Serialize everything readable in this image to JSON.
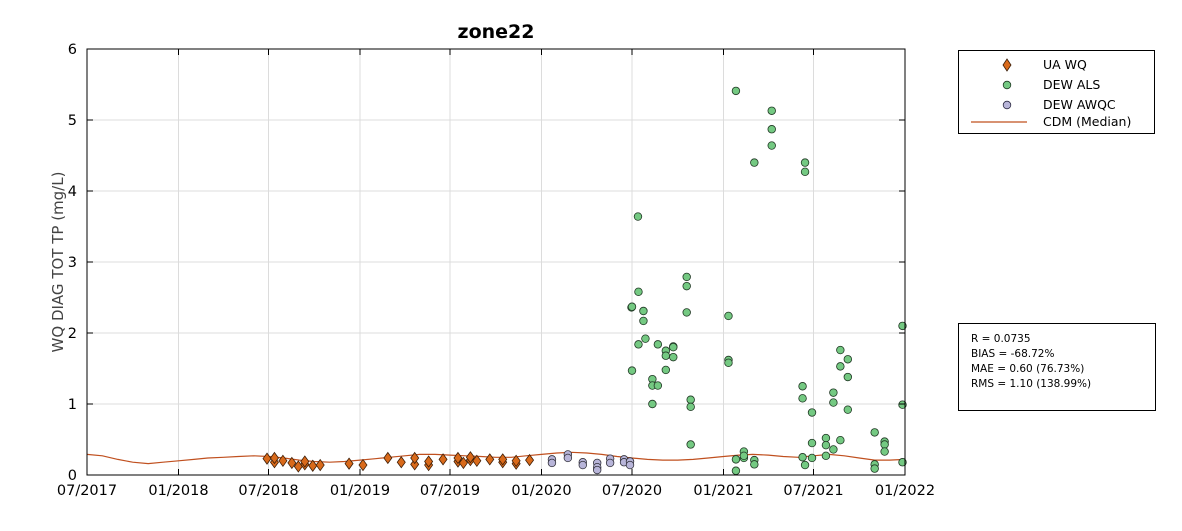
{
  "chart_data": {
    "type": "scatter",
    "title": "zone22",
    "xlabel": "",
    "ylabel": "WQ DIAG TOT TP (mg/L)",
    "xlim": [
      "2017-07-01",
      "2022-01-01"
    ],
    "ylim": [
      0,
      6
    ],
    "xticks": [
      "2017-07-01",
      "2018-01-01",
      "2018-07-01",
      "2019-01-01",
      "2019-07-01",
      "2020-01-01",
      "2020-07-01",
      "2021-01-01",
      "2021-07-01",
      "2022-01-01"
    ],
    "xtick_labels": [
      "07/2017",
      "01/2018",
      "07/2018",
      "01/2019",
      "07/2019",
      "01/2020",
      "07/2020",
      "01/2021",
      "07/2021",
      "01/2022"
    ],
    "yticks": [
      0,
      1,
      2,
      3,
      4,
      5,
      6
    ],
    "ytick_labels": [
      "0",
      "1",
      "2",
      "3",
      "4",
      "5",
      "6"
    ],
    "grid": true,
    "legend_position": "outside-top-right",
    "series": [
      {
        "name": "UA WQ",
        "marker": "diamond",
        "color": "#d96a1b",
        "points": [
          [
            "2018-06-28",
            0.23
          ],
          [
            "2018-07-13",
            0.18
          ],
          [
            "2018-07-13",
            0.24
          ],
          [
            "2018-07-30",
            0.2
          ],
          [
            "2018-08-17",
            0.17
          ],
          [
            "2018-08-30",
            0.12
          ],
          [
            "2018-09-12",
            0.15
          ],
          [
            "2018-09-12",
            0.19
          ],
          [
            "2018-09-28",
            0.13
          ],
          [
            "2018-10-13",
            0.14
          ],
          [
            "2018-12-10",
            0.16
          ],
          [
            "2019-01-07",
            0.14
          ],
          [
            "2019-02-26",
            0.24
          ],
          [
            "2019-03-25",
            0.18
          ],
          [
            "2019-04-21",
            0.15
          ],
          [
            "2019-04-21",
            0.24
          ],
          [
            "2019-05-19",
            0.14
          ],
          [
            "2019-05-19",
            0.19
          ],
          [
            "2019-06-17",
            0.22
          ],
          [
            "2019-07-17",
            0.19
          ],
          [
            "2019-07-17",
            0.24
          ],
          [
            "2019-07-28",
            0.17
          ],
          [
            "2019-08-11",
            0.21
          ],
          [
            "2019-08-11",
            0.25
          ],
          [
            "2019-08-24",
            0.2
          ],
          [
            "2019-09-19",
            0.22
          ],
          [
            "2019-10-15",
            0.18
          ],
          [
            "2019-10-15",
            0.22
          ],
          [
            "2019-11-11",
            0.16
          ],
          [
            "2019-11-11",
            0.2
          ],
          [
            "2019-12-08",
            0.21
          ]
        ]
      },
      {
        "name": "DEW ALS",
        "marker": "circle",
        "color": "#74c982",
        "points": [
          [
            "2020-06-30",
            2.36
          ],
          [
            "2020-07-01",
            2.37
          ],
          [
            "2020-07-01",
            1.47
          ],
          [
            "2020-07-13",
            3.64
          ],
          [
            "2020-07-14",
            2.58
          ],
          [
            "2020-07-14",
            1.84
          ],
          [
            "2020-07-24",
            2.31
          ],
          [
            "2020-07-24",
            2.17
          ],
          [
            "2020-07-28",
            1.92
          ],
          [
            "2020-08-11",
            1.35
          ],
          [
            "2020-08-11",
            1.26
          ],
          [
            "2020-08-11",
            1.0
          ],
          [
            "2020-08-22",
            1.26
          ],
          [
            "2020-08-22",
            1.84
          ],
          [
            "2020-09-07",
            1.75
          ],
          [
            "2020-09-07",
            1.68
          ],
          [
            "2020-09-07",
            1.48
          ],
          [
            "2020-09-22",
            1.81
          ],
          [
            "2020-09-22",
            1.8
          ],
          [
            "2020-09-22",
            1.66
          ],
          [
            "2020-10-19",
            2.79
          ],
          [
            "2020-10-19",
            2.66
          ],
          [
            "2020-10-19",
            2.29
          ],
          [
            "2020-10-27",
            1.06
          ],
          [
            "2020-10-27",
            0.96
          ],
          [
            "2020-10-27",
            0.43
          ],
          [
            "2021-01-11",
            2.24
          ],
          [
            "2021-01-11",
            1.62
          ],
          [
            "2021-01-11",
            1.58
          ],
          [
            "2021-01-26",
            5.41
          ],
          [
            "2021-01-26",
            0.22
          ],
          [
            "2021-01-26",
            0.06
          ],
          [
            "2021-02-11",
            0.33
          ],
          [
            "2021-02-11",
            0.24
          ],
          [
            "2021-02-11",
            0.27
          ],
          [
            "2021-03-04",
            4.4
          ],
          [
            "2021-03-04",
            0.21
          ],
          [
            "2021-03-04",
            0.15
          ],
          [
            "2021-04-08",
            5.13
          ],
          [
            "2021-04-08",
            4.87
          ],
          [
            "2021-04-08",
            4.64
          ],
          [
            "2021-06-09",
            1.25
          ],
          [
            "2021-06-09",
            1.08
          ],
          [
            "2021-06-09",
            0.25
          ],
          [
            "2021-06-14",
            4.4
          ],
          [
            "2021-06-14",
            4.27
          ],
          [
            "2021-06-14",
            0.14
          ],
          [
            "2021-06-28",
            0.88
          ],
          [
            "2021-06-28",
            0.45
          ],
          [
            "2021-06-28",
            0.24
          ],
          [
            "2021-07-26",
            0.52
          ],
          [
            "2021-07-26",
            0.42
          ],
          [
            "2021-07-26",
            0.27
          ],
          [
            "2021-08-10",
            1.16
          ],
          [
            "2021-08-10",
            1.02
          ],
          [
            "2021-08-10",
            0.36
          ],
          [
            "2021-08-24",
            1.76
          ],
          [
            "2021-08-24",
            1.53
          ],
          [
            "2021-08-24",
            0.49
          ],
          [
            "2021-09-08",
            1.63
          ],
          [
            "2021-09-08",
            1.38
          ],
          [
            "2021-09-08",
            0.92
          ],
          [
            "2021-11-01",
            0.6
          ],
          [
            "2021-11-01",
            0.15
          ],
          [
            "2021-11-01",
            0.09
          ],
          [
            "2021-11-21",
            0.47
          ],
          [
            "2021-11-21",
            0.43
          ],
          [
            "2021-11-21",
            0.33
          ],
          [
            "2021-12-27",
            2.1
          ],
          [
            "2021-12-27",
            0.99
          ],
          [
            "2021-12-27",
            0.18
          ]
        ]
      },
      {
        "name": "DEW AWQC",
        "marker": "circle",
        "color": "#b8b5d9",
        "points": [
          [
            "2020-01-22",
            0.22
          ],
          [
            "2020-01-22",
            0.17
          ],
          [
            "2020-02-23",
            0.29
          ],
          [
            "2020-02-23",
            0.24
          ],
          [
            "2020-03-24",
            0.18
          ],
          [
            "2020-03-24",
            0.14
          ],
          [
            "2020-04-22",
            0.17
          ],
          [
            "2020-04-22",
            0.11
          ],
          [
            "2020-04-22",
            0.07
          ],
          [
            "2020-05-18",
            0.23
          ],
          [
            "2020-05-18",
            0.17
          ],
          [
            "2020-06-15",
            0.22
          ],
          [
            "2020-06-15",
            0.18
          ],
          [
            "2020-06-27",
            0.19
          ],
          [
            "2020-06-27",
            0.14
          ]
        ]
      },
      {
        "name": "CDM (Median)",
        "type": "line",
        "color": "#c0501f",
        "points": [
          [
            "2017-07-01",
            0.29
          ],
          [
            "2017-08-01",
            0.27
          ],
          [
            "2017-09-01",
            0.22
          ],
          [
            "2017-10-01",
            0.18
          ],
          [
            "2017-11-01",
            0.16
          ],
          [
            "2017-12-01",
            0.18
          ],
          [
            "2018-01-01",
            0.2
          ],
          [
            "2018-02-01",
            0.22
          ],
          [
            "2018-03-01",
            0.24
          ],
          [
            "2018-04-01",
            0.25
          ],
          [
            "2018-05-01",
            0.26
          ],
          [
            "2018-06-01",
            0.27
          ],
          [
            "2018-07-01",
            0.26
          ],
          [
            "2018-08-01",
            0.24
          ],
          [
            "2018-09-01",
            0.21
          ],
          [
            "2018-10-01",
            0.19
          ],
          [
            "2018-11-01",
            0.18
          ],
          [
            "2018-12-01",
            0.19
          ],
          [
            "2019-01-01",
            0.21
          ],
          [
            "2019-02-01",
            0.23
          ],
          [
            "2019-03-01",
            0.25
          ],
          [
            "2019-04-01",
            0.27
          ],
          [
            "2019-05-01",
            0.29
          ],
          [
            "2019-06-01",
            0.29
          ],
          [
            "2019-07-01",
            0.28
          ],
          [
            "2019-08-01",
            0.27
          ],
          [
            "2019-09-01",
            0.26
          ],
          [
            "2019-10-01",
            0.25
          ],
          [
            "2019-11-01",
            0.25
          ],
          [
            "2019-12-01",
            0.27
          ],
          [
            "2020-01-01",
            0.29
          ],
          [
            "2020-02-01",
            0.31
          ],
          [
            "2020-03-01",
            0.32
          ],
          [
            "2020-04-01",
            0.31
          ],
          [
            "2020-05-01",
            0.29
          ],
          [
            "2020-06-01",
            0.26
          ],
          [
            "2020-07-01",
            0.24
          ],
          [
            "2020-08-01",
            0.22
          ],
          [
            "2020-09-01",
            0.21
          ],
          [
            "2020-10-01",
            0.21
          ],
          [
            "2020-11-01",
            0.22
          ],
          [
            "2020-12-01",
            0.24
          ],
          [
            "2021-01-01",
            0.26
          ],
          [
            "2021-02-01",
            0.28
          ],
          [
            "2021-03-01",
            0.29
          ],
          [
            "2021-04-01",
            0.28
          ],
          [
            "2021-05-01",
            0.26
          ],
          [
            "2021-06-01",
            0.25
          ],
          [
            "2021-07-01",
            0.27
          ],
          [
            "2021-08-01",
            0.29
          ],
          [
            "2021-09-01",
            0.27
          ],
          [
            "2021-10-01",
            0.24
          ],
          [
            "2021-11-01",
            0.21
          ],
          [
            "2021-12-01",
            0.21
          ],
          [
            "2022-01-01",
            0.22
          ]
        ]
      }
    ],
    "stats": [
      "R = 0.0735",
      "BIAS = -68.72%",
      "MAE = 0.60 (76.73%)",
      "RMS = 1.10 (138.99%)"
    ]
  }
}
